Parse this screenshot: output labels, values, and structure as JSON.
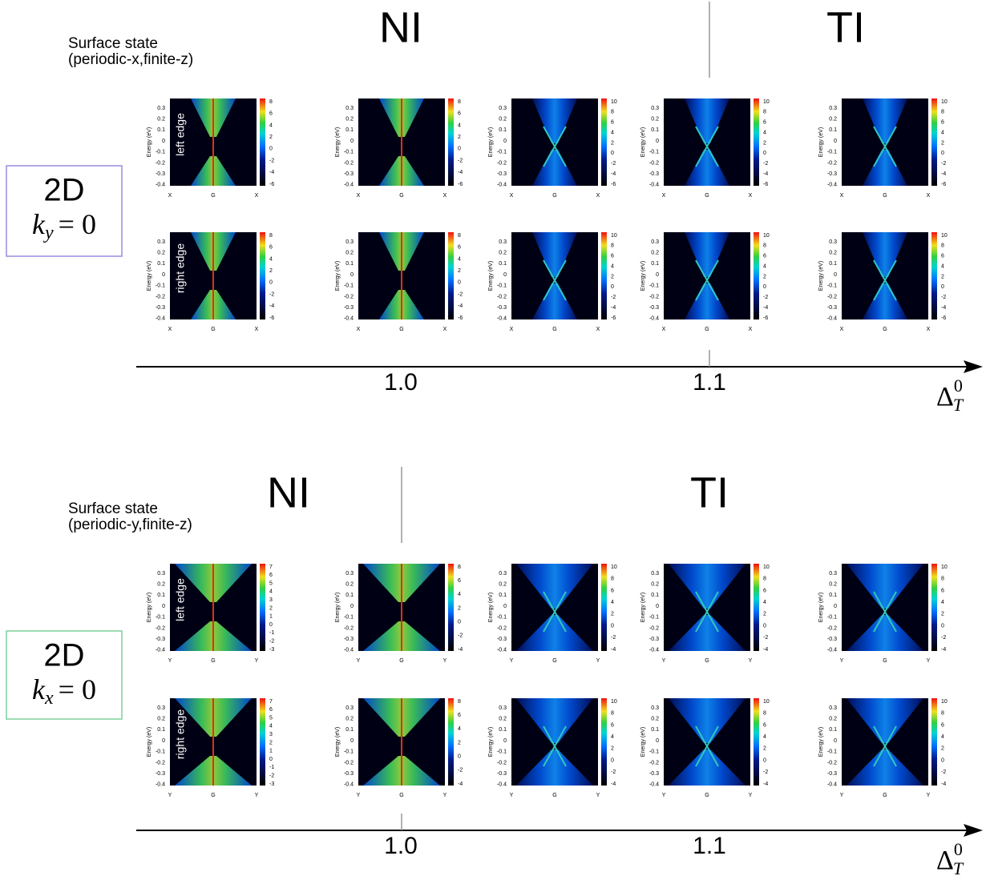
{
  "sections": [
    {
      "title_lines": [
        "Surface state",
        "(periodic-x,finite-z)"
      ],
      "phase_left": "NI",
      "phase_right": "TI",
      "box": {
        "dim": "2D",
        "var": "k",
        "sub": "y",
        "eq": "= 0"
      },
      "edges": [
        "left edge",
        "right edge"
      ],
      "energy_label": "Energy (eV)",
      "energy_ticks": [
        0.3,
        0.2,
        0.1,
        0,
        -0.1,
        -0.2,
        -0.3,
        -0.4
      ],
      "k_labels": [
        "X",
        "G",
        "X"
      ],
      "colorbar_ticks": [
        [
          [
            8,
            6,
            4,
            2,
            0,
            -2,
            -4,
            -6
          ],
          [
            8,
            6,
            4,
            2,
            0,
            -2,
            -4,
            -6
          ],
          [
            10,
            8,
            6,
            4,
            2,
            0,
            -2,
            -4,
            -6
          ],
          [
            10,
            8,
            6,
            4,
            2,
            0,
            -2,
            -4,
            -6
          ],
          [
            10,
            8,
            6,
            4,
            2,
            0,
            -2,
            -4,
            -6
          ]
        ],
        [
          [
            8,
            6,
            4,
            2,
            0,
            -2,
            -4,
            -6
          ],
          [
            8,
            6,
            4,
            2,
            0,
            -2,
            -4,
            -6
          ],
          [
            10,
            8,
            6,
            4,
            2,
            0,
            -2,
            -4,
            -6
          ],
          [
            10,
            8,
            6,
            4,
            2,
            0,
            -2,
            -4,
            -6
          ],
          [
            10,
            8,
            6,
            4,
            2,
            0,
            -2,
            -4,
            -6
          ]
        ]
      ],
      "axis": {
        "ticks": [
          "1.0",
          "1.1"
        ],
        "symbol": "Δ",
        "sub": "T",
        "sup": "0"
      }
    },
    {
      "title_lines": [
        "Surface state",
        "(periodic-y,finite-z)"
      ],
      "phase_left": "NI",
      "phase_right": "TI",
      "box": {
        "dim": "2D",
        "var": "k",
        "sub": "x",
        "eq": "= 0"
      },
      "edges": [
        "left edge",
        "right edge"
      ],
      "energy_label": "Energy (eV)",
      "energy_ticks": [
        0.3,
        0.2,
        0.1,
        0,
        -0.1,
        -0.2,
        -0.3,
        -0.4
      ],
      "k_labels": [
        "Y",
        "G",
        "Y"
      ],
      "colorbar_ticks": [
        [
          [
            7,
            6,
            5,
            4,
            3,
            2,
            1,
            0,
            -1,
            -2,
            -3
          ],
          [
            8,
            6,
            4,
            2,
            0,
            -2,
            -4
          ],
          [
            10,
            8,
            6,
            4,
            2,
            0,
            -2,
            -4
          ],
          [
            10,
            8,
            6,
            4,
            2,
            0,
            -2,
            -4
          ],
          [
            10,
            8,
            6,
            4,
            2,
            0,
            -2,
            -4
          ]
        ],
        [
          [
            7,
            6,
            5,
            4,
            3,
            2,
            1,
            0,
            -1,
            -2,
            -3
          ],
          [
            8,
            6,
            4,
            2,
            0,
            -2,
            -4
          ],
          [
            10,
            8,
            6,
            4,
            2,
            0,
            -2,
            -4
          ],
          [
            10,
            8,
            6,
            4,
            2,
            0,
            -2,
            -4
          ],
          [
            10,
            8,
            6,
            4,
            2,
            0,
            -2,
            -4
          ]
        ]
      ],
      "axis": {
        "ticks": [
          "1.0",
          "1.1"
        ],
        "symbol": "Δ",
        "sub": "T",
        "sup": "0"
      }
    }
  ]
}
